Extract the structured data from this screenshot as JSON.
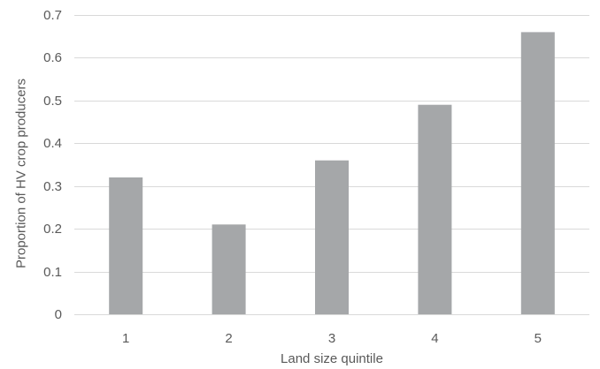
{
  "chart_data": {
    "type": "bar",
    "title": "",
    "xlabel": "Land size quintile",
    "ylabel": "Proportion of HV crop producers",
    "categories": [
      "1",
      "2",
      "3",
      "4",
      "5"
    ],
    "values": [
      0.32,
      0.21,
      0.36,
      0.49,
      0.66
    ],
    "ylim": [
      0,
      0.7
    ],
    "yticks": [
      0,
      0.1,
      0.2,
      0.3,
      0.4,
      0.5,
      0.6,
      0.7
    ],
    "ytick_labels": [
      "0",
      "0.1",
      "0.2",
      "0.3",
      "0.4",
      "0.5",
      "0.6",
      "0.7"
    ],
    "grid": true,
    "legend": "none",
    "colors": {
      "bar": "#a5a7a9",
      "grid": "#d9d9d9",
      "text": "#595959"
    }
  }
}
